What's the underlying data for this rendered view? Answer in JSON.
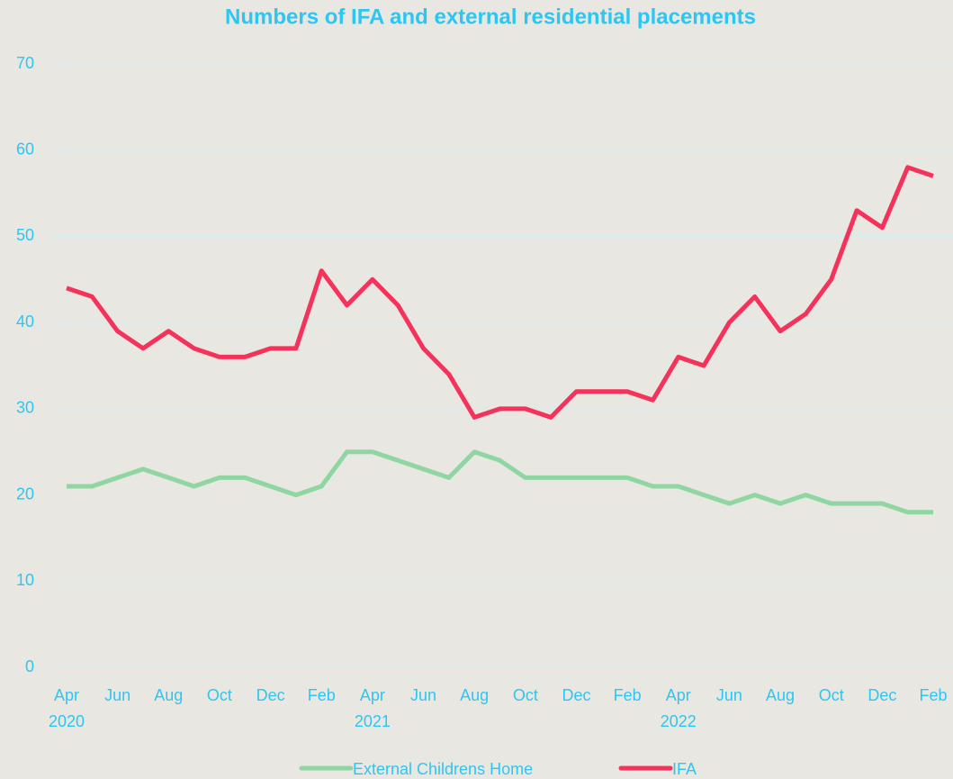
{
  "chart_data": {
    "type": "line",
    "title": "Numbers of IFA and external residential placements",
    "categories": [
      "Apr",
      null,
      "Jun",
      null,
      "Aug",
      null,
      "Oct",
      null,
      "Dec",
      null,
      "Feb",
      null,
      "Apr",
      null,
      "Jun",
      null,
      "Aug",
      null,
      "Oct",
      null,
      "Dec",
      null,
      "Feb",
      null,
      "Apr",
      null,
      "Jun",
      null,
      "Aug",
      null,
      "Oct",
      null,
      "Dec",
      null,
      "Feb"
    ],
    "years": [
      "2020",
      null,
      null,
      null,
      null,
      null,
      null,
      null,
      null,
      null,
      null,
      null,
      "2021",
      null,
      null,
      null,
      null,
      null,
      null,
      null,
      null,
      null,
      null,
      null,
      "2022",
      null,
      null,
      null,
      null,
      null,
      null,
      null,
      null,
      null,
      null
    ],
    "series": [
      {
        "name": "External Childrens Home",
        "color": "#8fd6a2",
        "values": [
          21,
          21,
          22,
          23,
          22,
          21,
          22,
          22,
          21,
          20,
          21,
          25,
          25,
          24,
          23,
          22,
          25,
          24,
          22,
          22,
          22,
          22,
          22,
          21,
          21,
          20,
          19,
          20,
          19,
          20,
          19,
          19,
          19,
          18,
          18
        ]
      },
      {
        "name": "IFA",
        "color": "#f5325a",
        "values": [
          44,
          43,
          39,
          37,
          39,
          37,
          36,
          36,
          37,
          37,
          46,
          42,
          45,
          42,
          37,
          34,
          29,
          30,
          30,
          29,
          32,
          32,
          32,
          31,
          36,
          35,
          40,
          43,
          39,
          41,
          45,
          53,
          51,
          58,
          57
        ]
      }
    ],
    "ylim": [
      0,
      70
    ],
    "yticks": [
      0,
      10,
      20,
      30,
      40,
      50,
      60,
      70
    ],
    "grid": true,
    "legend": "bottom"
  }
}
